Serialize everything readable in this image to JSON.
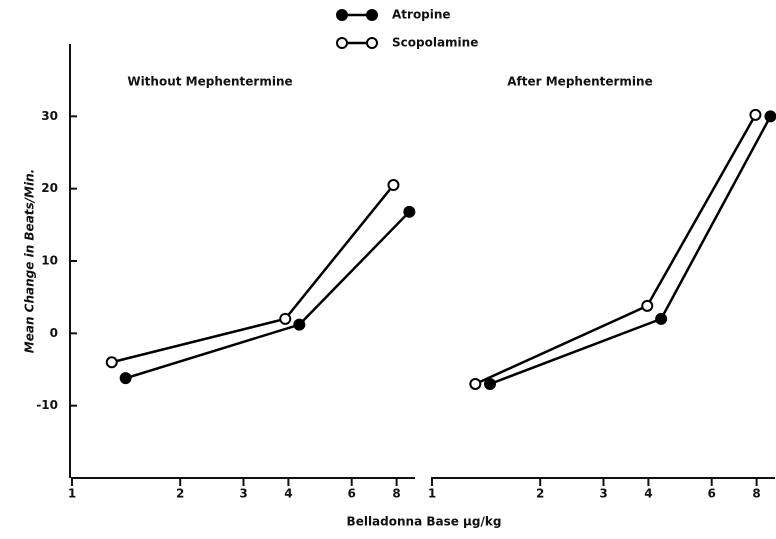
{
  "chart_data": {
    "type": "line",
    "xscale": "log",
    "xlabel": "Belladonna Base µg/kg",
    "ylabel": "Mean Change in Beats/Min.",
    "ylim": [
      -20,
      40
    ],
    "yticks": [
      -10,
      0,
      10,
      20,
      30
    ],
    "legend": "top",
    "panels": [
      {
        "title": "Without Mephentermine",
        "xlim": [
          1,
          9
        ],
        "xticks": [
          1,
          2,
          3,
          4,
          6,
          8
        ],
        "series": [
          {
            "name": "Atropine",
            "color": "#000000",
            "marker": "filled",
            "x": [
              1.41,
              4.29,
              8.68
            ],
            "values": [
              -6.2,
              1.2,
              16.8
            ]
          },
          {
            "name": "Scopolamine",
            "color": "#000000",
            "marker": "open",
            "x": [
              1.29,
              3.92,
              7.84
            ],
            "values": [
              -4,
              2,
              20.5
            ]
          }
        ]
      },
      {
        "title": "After Mephentermine",
        "xlim": [
          1,
          9
        ],
        "xticks": [
          1,
          2,
          3,
          4,
          6,
          8
        ],
        "series": [
          {
            "name": "Atropine",
            "color": "#000000",
            "marker": "filled",
            "x": [
              1.45,
              4.34,
              8.74
            ],
            "values": [
              -7,
              2,
              30
            ]
          },
          {
            "name": "Scopolamine",
            "color": "#000000",
            "marker": "open",
            "x": [
              1.32,
              3.97,
              7.94
            ],
            "values": [
              -7,
              3.8,
              30.2
            ]
          }
        ]
      }
    ]
  }
}
